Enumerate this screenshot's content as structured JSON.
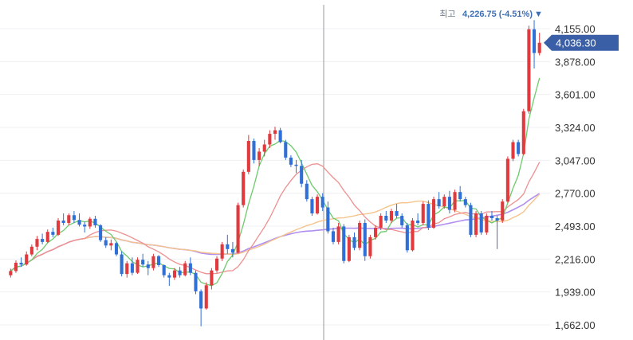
{
  "chart_data": {
    "type": "candlestick",
    "y_axis": {
      "position": "right",
      "range": [
        1662,
        4155
      ],
      "ticks": [
        "4,155.00",
        "3,878.00",
        "3,601.00",
        "3,324.00",
        "3,047.00",
        "2,770.00",
        "2,493.00",
        "2,216.00",
        "1,939.00",
        "1,662.00"
      ],
      "tick_values": [
        4155,
        3878,
        3601,
        3324,
        3047,
        2770,
        2493,
        2216,
        1939,
        1662
      ]
    },
    "high_annotation": {
      "prefix": "최고",
      "value": "4,226.75 (-4.51%)",
      "marker": "▼"
    },
    "current_price": {
      "label": "4,036.30",
      "value": 4036.3
    },
    "grid": true,
    "colors": {
      "up": "#e0393e",
      "down": "#2f6fd6",
      "ma_short": "#6ccb6c",
      "ma_mid": "#ee8f8f",
      "ma_long": "#f5c48c",
      "ma_longest": "#b08ef0",
      "price_tag": "#3a5fa6",
      "crosshair": "#9a9a9a"
    },
    "candles": [
      [
        2080,
        2135,
        2060,
        2115
      ],
      [
        2115,
        2205,
        2100,
        2185
      ],
      [
        2185,
        2230,
        2150,
        2170
      ],
      [
        2170,
        2280,
        2160,
        2255
      ],
      [
        2255,
        2340,
        2240,
        2320
      ],
      [
        2320,
        2410,
        2290,
        2385
      ],
      [
        2385,
        2430,
        2340,
        2360
      ],
      [
        2360,
        2465,
        2350,
        2445
      ],
      [
        2445,
        2480,
        2400,
        2420
      ],
      [
        2420,
        2560,
        2410,
        2540
      ],
      [
        2540,
        2600,
        2500,
        2520
      ],
      [
        2520,
        2600,
        2500,
        2585
      ],
      [
        2585,
        2620,
        2520,
        2545
      ],
      [
        2545,
        2600,
        2490,
        2505
      ],
      [
        2505,
        2530,
        2440,
        2490
      ],
      [
        2490,
        2570,
        2470,
        2555
      ],
      [
        2555,
        2580,
        2480,
        2500
      ],
      [
        2500,
        2510,
        2360,
        2375
      ],
      [
        2375,
        2400,
        2310,
        2330
      ],
      [
        2330,
        2380,
        2290,
        2350
      ],
      [
        2350,
        2360,
        2240,
        2255
      ],
      [
        2255,
        2280,
        2070,
        2090
      ],
      [
        2090,
        2200,
        2060,
        2180
      ],
      [
        2180,
        2230,
        2080,
        2100
      ],
      [
        2100,
        2230,
        2090,
        2210
      ],
      [
        2210,
        2260,
        2150,
        2170
      ],
      [
        2170,
        2200,
        2080,
        2140
      ],
      [
        2140,
        2260,
        2120,
        2240
      ],
      [
        2240,
        2250,
        2150,
        2165
      ],
      [
        2165,
        2170,
        2060,
        2080
      ],
      [
        2080,
        2100,
        1990,
        2060
      ],
      [
        2060,
        2140,
        2040,
        2120
      ],
      [
        2120,
        2150,
        2060,
        2080
      ],
      [
        2080,
        2200,
        2070,
        2180
      ],
      [
        2180,
        2230,
        2080,
        2100
      ],
      [
        2100,
        2120,
        1920,
        1945
      ],
      [
        1945,
        1960,
        1650,
        1800
      ],
      [
        1800,
        2020,
        1790,
        1995
      ],
      [
        1995,
        2140,
        1960,
        2120
      ],
      [
        2120,
        2240,
        2100,
        2220
      ],
      [
        2220,
        2360,
        2200,
        2340
      ],
      [
        2340,
        2420,
        2260,
        2300
      ],
      [
        2300,
        2360,
        2230,
        2270
      ],
      [
        2270,
        2690,
        2260,
        2670
      ],
      [
        2670,
        2970,
        2650,
        2950
      ],
      [
        2950,
        3260,
        2930,
        3210
      ],
      [
        3210,
        3230,
        3020,
        3050
      ],
      [
        3050,
        3150,
        3000,
        3120
      ],
      [
        3120,
        3220,
        3080,
        3180
      ],
      [
        3180,
        3300,
        3150,
        3270
      ],
      [
        3270,
        3330,
        3220,
        3300
      ],
      [
        3300,
        3320,
        3190,
        3200
      ],
      [
        3200,
        3220,
        3050,
        3070
      ],
      [
        3070,
        3090,
        2990,
        3010
      ],
      [
        3010,
        3050,
        2940,
        3000
      ],
      [
        3000,
        3050,
        2820,
        2850
      ],
      [
        2850,
        2880,
        2700,
        2720
      ],
      [
        2720,
        2740,
        2580,
        2600
      ],
      [
        2600,
        2760,
        2590,
        2740
      ],
      [
        2740,
        2770,
        2620,
        2650
      ],
      [
        2650,
        2700,
        2430,
        2450
      ],
      [
        2450,
        2480,
        2340,
        2360
      ],
      [
        2360,
        2520,
        2340,
        2490
      ],
      [
        2490,
        2510,
        2180,
        2200
      ],
      [
        2200,
        2420,
        2190,
        2400
      ],
      [
        2400,
        2440,
        2290,
        2310
      ],
      [
        2310,
        2540,
        2290,
        2520
      ],
      [
        2520,
        2550,
        2200,
        2240
      ],
      [
        2240,
        2420,
        2220,
        2400
      ],
      [
        2400,
        2500,
        2380,
        2480
      ],
      [
        2480,
        2600,
        2460,
        2580
      ],
      [
        2580,
        2620,
        2520,
        2540
      ],
      [
        2540,
        2640,
        2520,
        2620
      ],
      [
        2620,
        2680,
        2560,
        2580
      ],
      [
        2580,
        2600,
        2480,
        2500
      ],
      [
        2500,
        2520,
        2270,
        2290
      ],
      [
        2290,
        2560,
        2280,
        2540
      ],
      [
        2540,
        2600,
        2500,
        2520
      ],
      [
        2520,
        2700,
        2500,
        2680
      ],
      [
        2680,
        2710,
        2460,
        2480
      ],
      [
        2480,
        2740,
        2470,
        2720
      ],
      [
        2720,
        2780,
        2640,
        2660
      ],
      [
        2660,
        2760,
        2640,
        2740
      ],
      [
        2740,
        2790,
        2600,
        2630
      ],
      [
        2630,
        2800,
        2610,
        2780
      ],
      [
        2780,
        2830,
        2700,
        2720
      ],
      [
        2720,
        2740,
        2650,
        2670
      ],
      [
        2670,
        2690,
        2400,
        2420
      ],
      [
        2420,
        2620,
        2400,
        2600
      ],
      [
        2600,
        2620,
        2420,
        2440
      ],
      [
        2440,
        2600,
        2420,
        2580
      ],
      [
        2580,
        2620,
        2540,
        2560
      ],
      [
        2560,
        2580,
        2300,
        2540
      ],
      [
        2540,
        2720,
        2520,
        2700
      ],
      [
        2700,
        3080,
        2690,
        3060
      ],
      [
        3060,
        3220,
        3040,
        3200
      ],
      [
        3200,
        3220,
        3080,
        3100
      ],
      [
        3100,
        3480,
        3090,
        3460
      ],
      [
        3460,
        4180,
        3440,
        4150
      ],
      [
        4150,
        4226.75,
        3820,
        3950
      ],
      [
        3950,
        4120,
        3930,
        4036.3
      ]
    ]
  }
}
